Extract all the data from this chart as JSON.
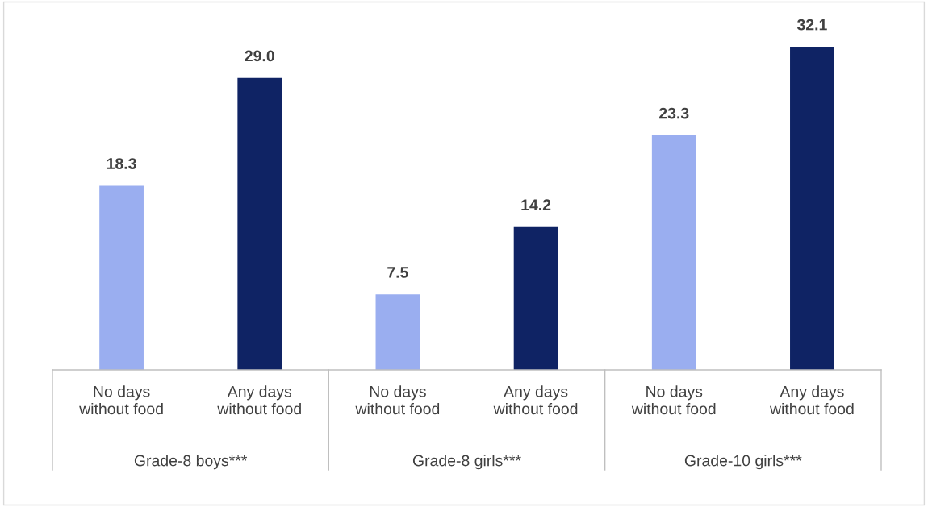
{
  "chart_data": {
    "type": "bar",
    "categories": [
      "Grade-8 boys***",
      "Grade-8 girls***",
      "Grade-10 girls***"
    ],
    "series": [
      {
        "name": "No days\nwithout food",
        "color": "#9aaef0",
        "values": [
          18.3,
          7.5,
          23.3
        ],
        "value_labels": [
          "18.3",
          "7.5",
          "23.3"
        ]
      },
      {
        "name": "Any days\nwithout food",
        "color": "#0f2364",
        "values": [
          29.0,
          14.2,
          32.1
        ],
        "value_labels": [
          "29.0",
          "14.2",
          "32.1"
        ]
      }
    ],
    "legend": false
  }
}
